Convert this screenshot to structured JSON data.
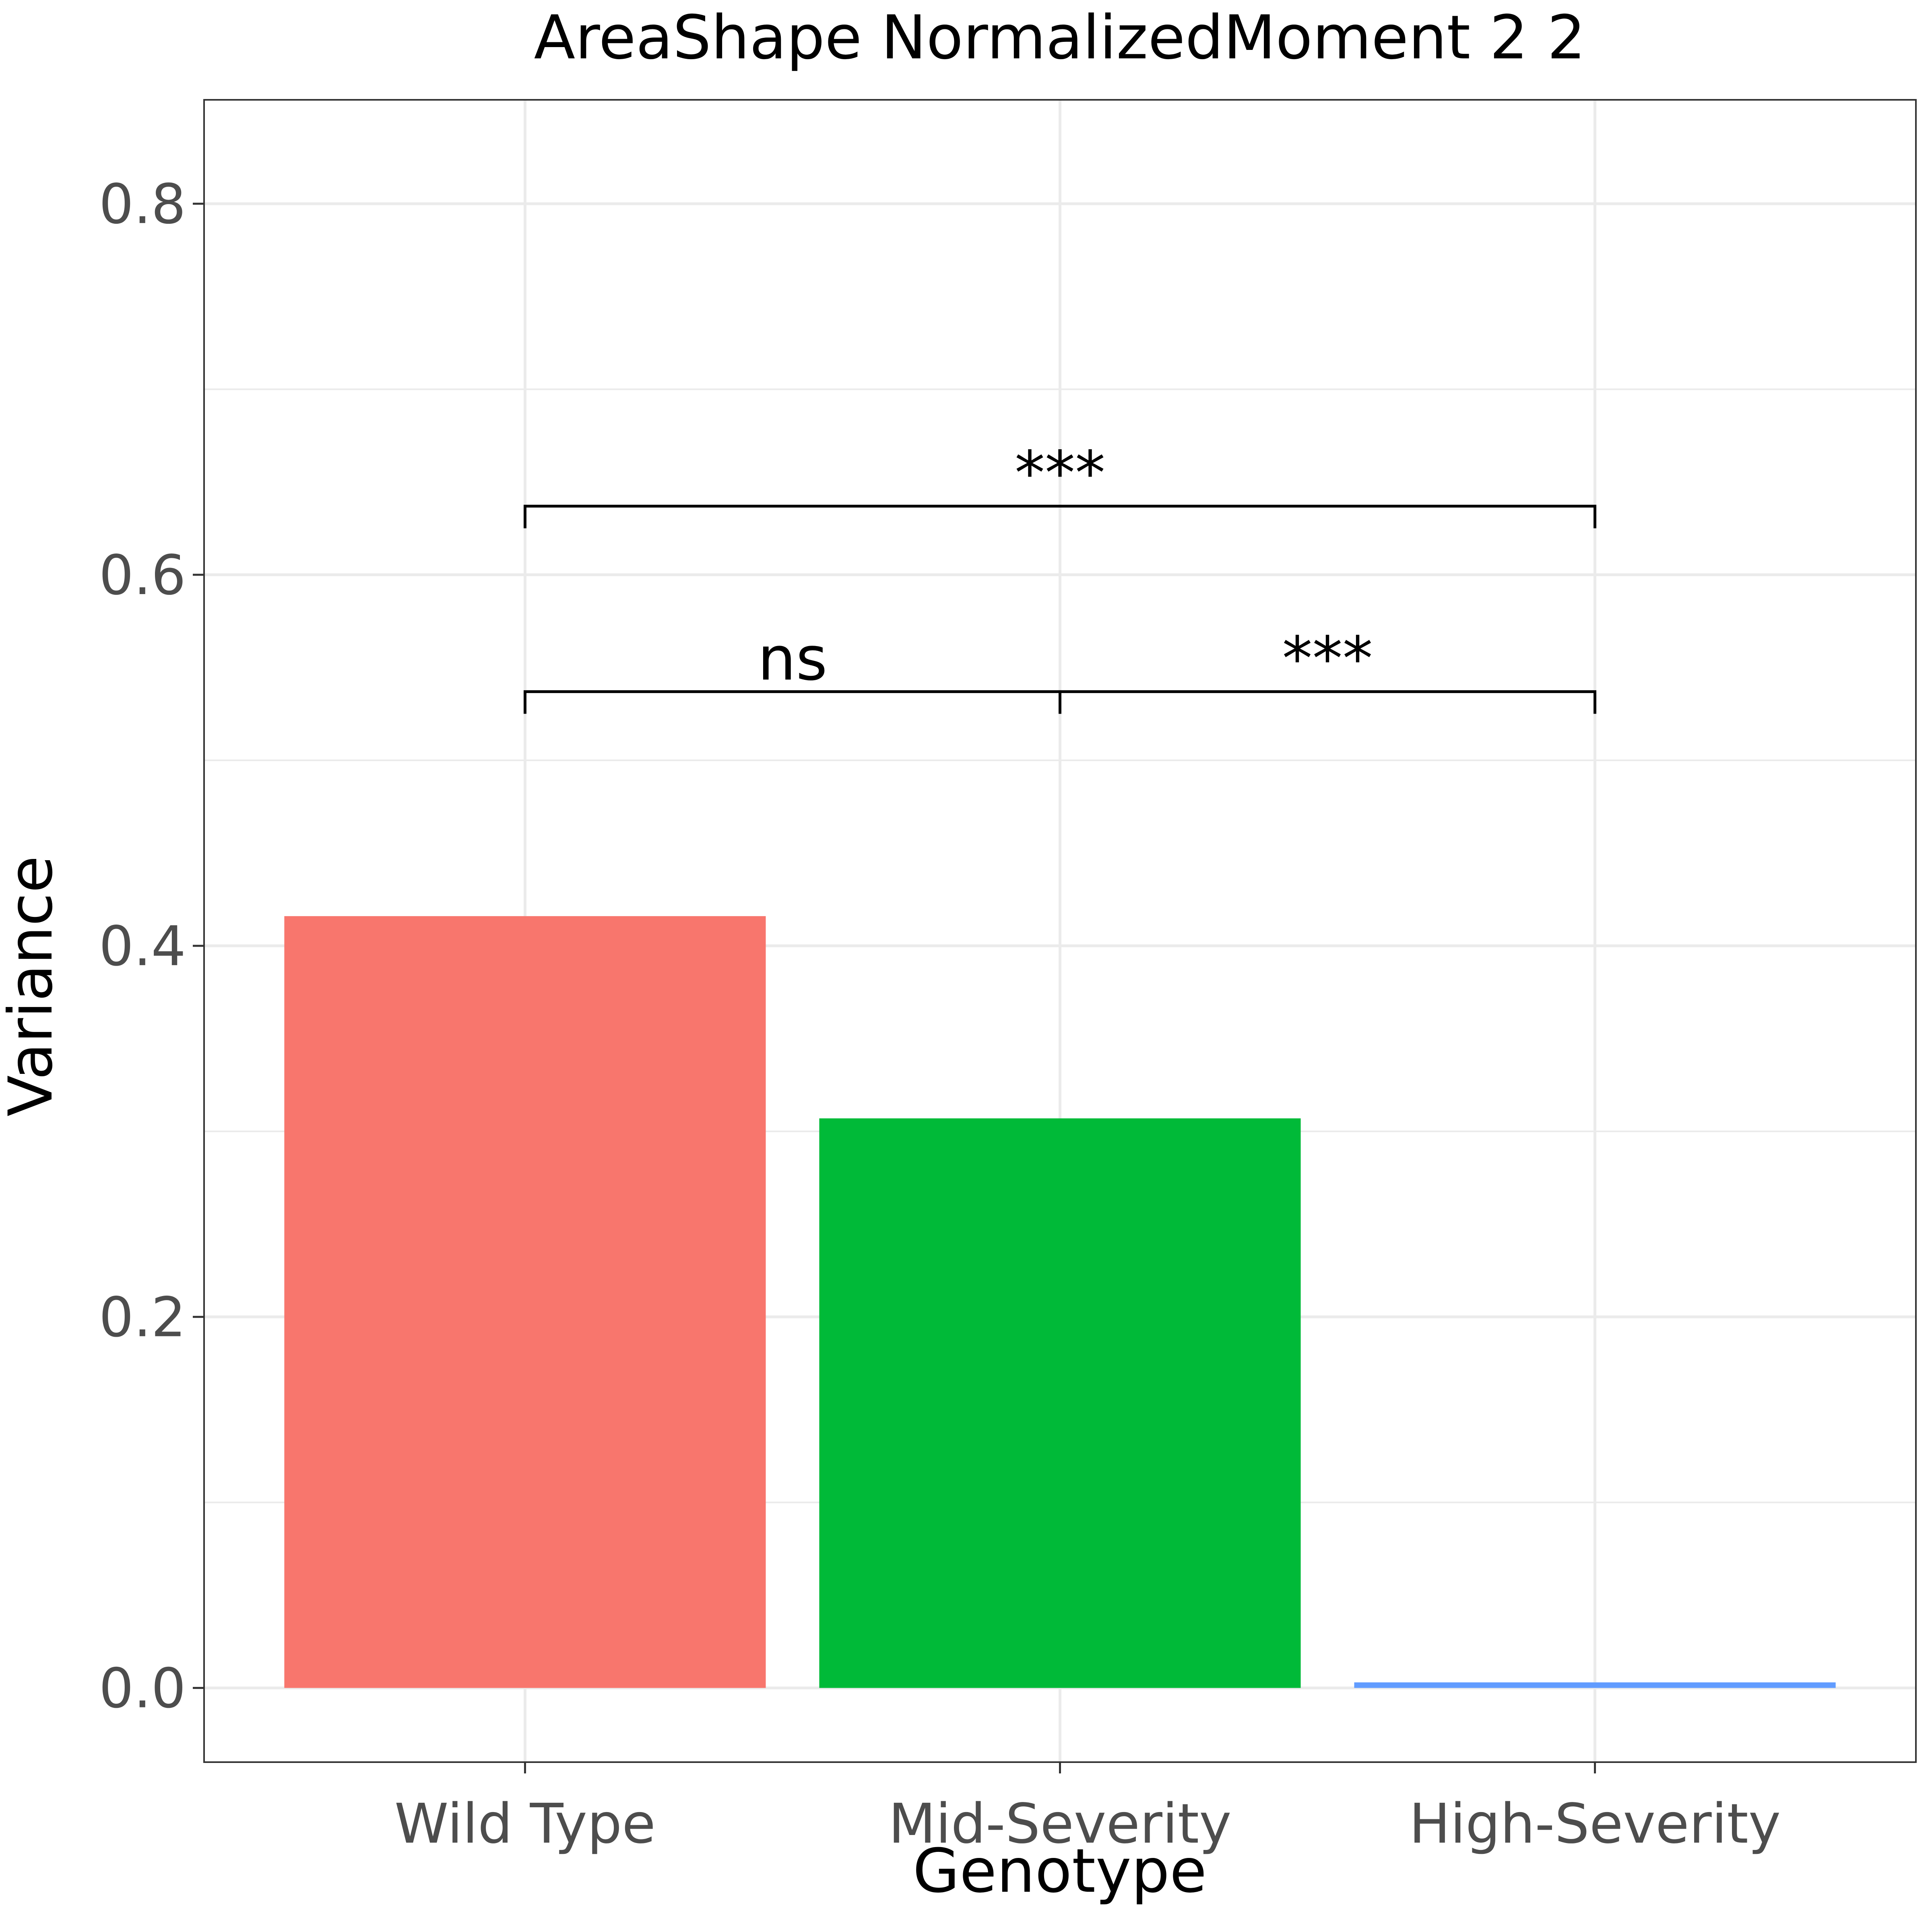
{
  "chart_data": {
    "type": "bar",
    "title": "AreaShape NormalizedMoment 2 2",
    "xlabel": "Genotype",
    "ylabel": "Variance",
    "categories": [
      "Wild Type",
      "Mid-Severity",
      "High-Severity"
    ],
    "values": [
      0.416,
      0.307,
      0.003
    ],
    "colors": [
      "#F8766D",
      "#00BA38",
      "#619CFF"
    ],
    "ylim": [
      -0.04,
      0.856
    ],
    "yticks": [
      0.0,
      0.2,
      0.4,
      0.6,
      0.8
    ],
    "ytick_labels": [
      "0.0",
      "0.2",
      "0.4",
      "0.6",
      "0.8"
    ],
    "grid": true,
    "legend": "none",
    "significance": [
      {
        "from": "Wild Type",
        "to": "Mid-Severity",
        "y": 0.537,
        "label": "ns"
      },
      {
        "from": "Mid-Severity",
        "to": "High-Severity",
        "y": 0.537,
        "label": "***"
      },
      {
        "from": "Wild Type",
        "to": "High-Severity",
        "y": 0.637,
        "label": "***"
      }
    ]
  }
}
